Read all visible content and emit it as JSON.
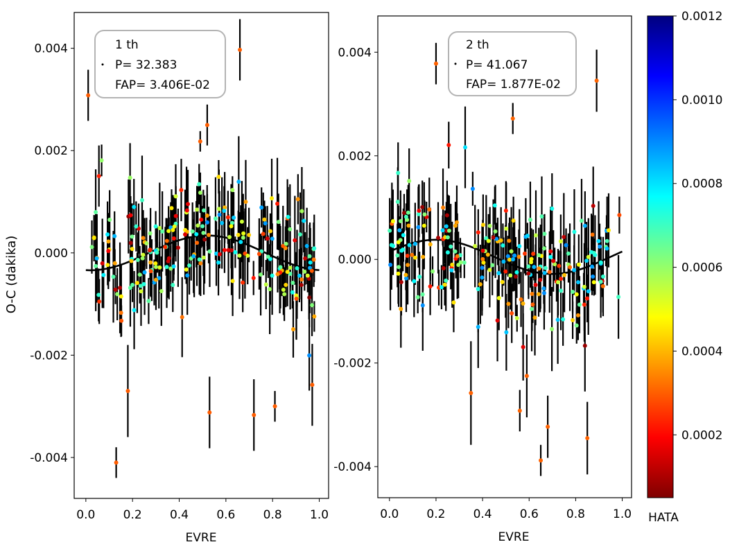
{
  "figure": {
    "ylabel": "O-C (dakika)",
    "colorbar": {
      "label": "HATA",
      "min": 5e-05,
      "max": 0.0012,
      "ticks": [
        0.0002,
        0.0004,
        0.0006,
        0.0008,
        0.001,
        0.0012
      ],
      "tick_labels": [
        "0.0002",
        "0.0004",
        "0.0006",
        "0.0008",
        "0.0010",
        "0.0012"
      ],
      "colormap": "jet",
      "colors": [
        "#7f0000",
        "#ff0000",
        "#ff7f00",
        "#ffff00",
        "#7fff7f",
        "#00ffff",
        "#007fff",
        "#0000ff",
        "#00007f"
      ]
    }
  },
  "chart_data": [
    {
      "type": "scatter",
      "title": "",
      "xlabel": "EVRE",
      "ylabel": "O-C (dakika)",
      "xlim": [
        -0.05,
        1.04
      ],
      "ylim": [
        -0.0048,
        0.0047
      ],
      "xticks": [
        0.0,
        0.2,
        0.4,
        0.6,
        0.8,
        1.0
      ],
      "xtick_labels": [
        "0.0",
        "0.2",
        "0.4",
        "0.6",
        "0.8",
        "1.0"
      ],
      "yticks": [
        -0.004,
        -0.002,
        0.0,
        0.002,
        0.004
      ],
      "ytick_labels": [
        "-0.004",
        "-0.002",
        "0.000",
        "0.002",
        "0.004"
      ],
      "legend": {
        "placement": "top-left",
        "lines": [
          "1 th",
          "P= 32.383",
          "FAP= 3.406E-02"
        ]
      },
      "fit": {
        "name": "sinusoidal fit",
        "mean": 0.0,
        "amplitude": 0.00034,
        "phase_of_max": 0.52,
        "x": [
          0.0,
          0.1,
          0.2,
          0.3,
          0.4,
          0.52,
          0.6,
          0.7,
          0.8,
          0.9,
          1.0
        ],
        "y": [
          -0.00034,
          -0.00028,
          -0.00013,
          7e-05,
          0.00024,
          0.00034,
          0.00031,
          0.00016,
          -6e-05,
          -0.00024,
          -0.00034
        ]
      },
      "highlighted_points": [
        {
          "x": 0.01,
          "y": 0.00308,
          "err": 0.0005
        },
        {
          "x": 0.13,
          "y": -0.0041,
          "err": 0.0003
        },
        {
          "x": 0.18,
          "y": -0.0027,
          "err": 0.0009
        },
        {
          "x": 0.53,
          "y": -0.00312,
          "err": 0.0007
        },
        {
          "x": 0.66,
          "y": 0.00397,
          "err": 0.0006
        },
        {
          "x": 0.72,
          "y": -0.00317,
          "err": 0.0007
        },
        {
          "x": 0.81,
          "y": -0.003,
          "err": 0.0003
        },
        {
          "x": 0.97,
          "y": -0.00258,
          "err": 0.0008
        },
        {
          "x": 0.52,
          "y": 0.0025,
          "err": 0.0004
        },
        {
          "x": 0.49,
          "y": 0.00218,
          "err": 0.0002
        }
      ],
      "cloud": {
        "n": 230,
        "seed": 11,
        "x_range": [
          0.0,
          0.98
        ],
        "sigma": 0.0008,
        "err_range": [
          0.00025,
          0.0009
        ]
      }
    },
    {
      "type": "scatter",
      "title": "",
      "xlabel": "EVRE",
      "ylabel": "",
      "xlim": [
        -0.05,
        1.04
      ],
      "ylim": [
        -0.0046,
        0.0047
      ],
      "xticks": [
        0.0,
        0.2,
        0.4,
        0.6,
        0.8,
        1.0
      ],
      "xtick_labels": [
        "0.0",
        "0.2",
        "0.4",
        "0.6",
        "0.8",
        "1.0"
      ],
      "yticks": [
        -0.004,
        -0.002,
        0.0,
        0.002,
        0.004
      ],
      "ytick_labels": [
        "-0.004",
        "-0.002",
        "0.000",
        "0.002",
        "0.004"
      ],
      "legend": {
        "placement": "top-right",
        "lines": [
          "2 th",
          "P= 41.067",
          "FAP= 1.877E-02"
        ]
      },
      "fit": {
        "name": "sinusoidal fit",
        "mean": 5e-05,
        "amplitude": 0.00033,
        "phase_of_max": 0.2,
        "x": [
          0.0,
          0.1,
          0.2,
          0.3,
          0.4,
          0.5,
          0.6,
          0.7,
          0.8,
          0.9,
          1.0
        ],
        "y": [
          0.00024,
          0.00034,
          0.00038,
          0.00033,
          0.00017,
          -2e-05,
          -0.00018,
          -0.00028,
          -0.00025,
          -8e-05,
          0.00018
        ]
      },
      "highlighted_points": [
        {
          "x": 0.2,
          "y": 0.00378,
          "err": 0.0004
        },
        {
          "x": 0.35,
          "y": -0.00258,
          "err": 0.001
        },
        {
          "x": 0.59,
          "y": -0.00225,
          "err": 0.0008
        },
        {
          "x": 0.65,
          "y": -0.00388,
          "err": 0.0003
        },
        {
          "x": 0.68,
          "y": -0.00323,
          "err": 0.0006
        },
        {
          "x": 0.85,
          "y": -0.00345,
          "err": 0.0007
        },
        {
          "x": 0.89,
          "y": 0.00345,
          "err": 0.0006
        },
        {
          "x": 0.53,
          "y": 0.00272,
          "err": 0.0003
        },
        {
          "x": 0.56,
          "y": -0.00292,
          "err": 0.0004
        }
      ],
      "cloud": {
        "n": 230,
        "seed": 23,
        "x_range": [
          0.0,
          0.99
        ],
        "sigma": 0.0008,
        "err_range": [
          0.00025,
          0.0009
        ]
      }
    }
  ]
}
